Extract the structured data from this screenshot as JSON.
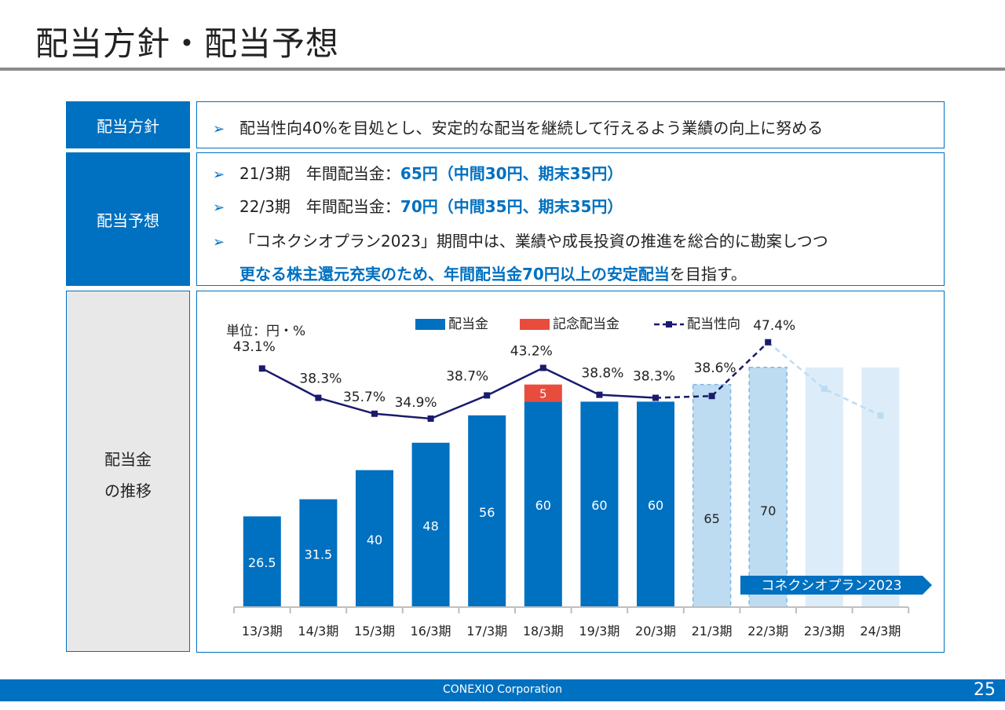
{
  "page": {
    "title": "配当方針・配当予想",
    "footer_company": "CONEXIO Corporation",
    "page_number": "25"
  },
  "policy": {
    "label": "配当方針",
    "text": "配当性向40%を目処とし、安定的な配当を継続して行えるよう業績の向上に努める"
  },
  "forecast": {
    "label": "配当予想",
    "line1_prefix": "21/3期　年間配当金：",
    "line1_highlight": "65円（中間30円、期末35円）",
    "line2_prefix": "22/3期　年間配当金：",
    "line2_highlight": "70円（中間35円、期末35円）",
    "line3": "「コネクシオプラン2023」期間中は、業績や成長投資の推進を総合的に勘案しつつ",
    "line4_highlight": "更なる株主還元充実のため、年間配当金70円以上の安定配当",
    "line4_suffix": "を目指す。"
  },
  "chart_section": {
    "label_line1": "配当金",
    "label_line2": "の推移"
  },
  "chart_data": {
    "type": "bar",
    "unit_label": "単位：円・%",
    "legend": [
      "配当金",
      "記念配当金",
      "配当性向"
    ],
    "plan_label": "コネクシオプラン2023",
    "categories": [
      "13/3期",
      "14/3期",
      "15/3期",
      "16/3期",
      "17/3期",
      "18/3期",
      "19/3期",
      "20/3期",
      "21/3期",
      "22/3期",
      "23/3期",
      "24/3期"
    ],
    "series": [
      {
        "name": "配当金",
        "values": [
          26.5,
          31.5,
          40,
          48,
          56,
          60,
          60,
          60,
          65,
          70,
          null,
          null
        ],
        "labels": [
          "26.5",
          "31.5",
          "40",
          "48",
          "56",
          "60",
          "60",
          "60",
          "65",
          "70",
          "",
          ""
        ]
      },
      {
        "name": "記念配当金",
        "values": [
          0,
          0,
          0,
          0,
          0,
          5,
          0,
          0,
          0,
          0,
          0,
          0
        ],
        "labels": [
          "",
          "",
          "",
          "",
          "",
          "5",
          "",
          "",
          "",
          "",
          "",
          ""
        ]
      },
      {
        "name": "配当性向",
        "values": [
          43.1,
          38.3,
          35.7,
          34.9,
          38.7,
          43.2,
          38.8,
          38.3,
          38.6,
          47.4,
          null,
          null
        ],
        "labels": [
          "43.1%",
          "38.3%",
          "35.7%",
          "34.9%",
          "38.7%",
          "43.2%",
          "38.8%",
          "38.3%",
          "38.6%",
          "47.4%",
          "",
          ""
        ]
      }
    ],
    "colors": {
      "dividend": "#0070c0",
      "commemorative": "#e84c3d",
      "payout": "#1a1a6e",
      "forecast_fill": "#bddcf2",
      "future_fill": "#dcecf9",
      "future_line": "#bddcf2"
    }
  }
}
